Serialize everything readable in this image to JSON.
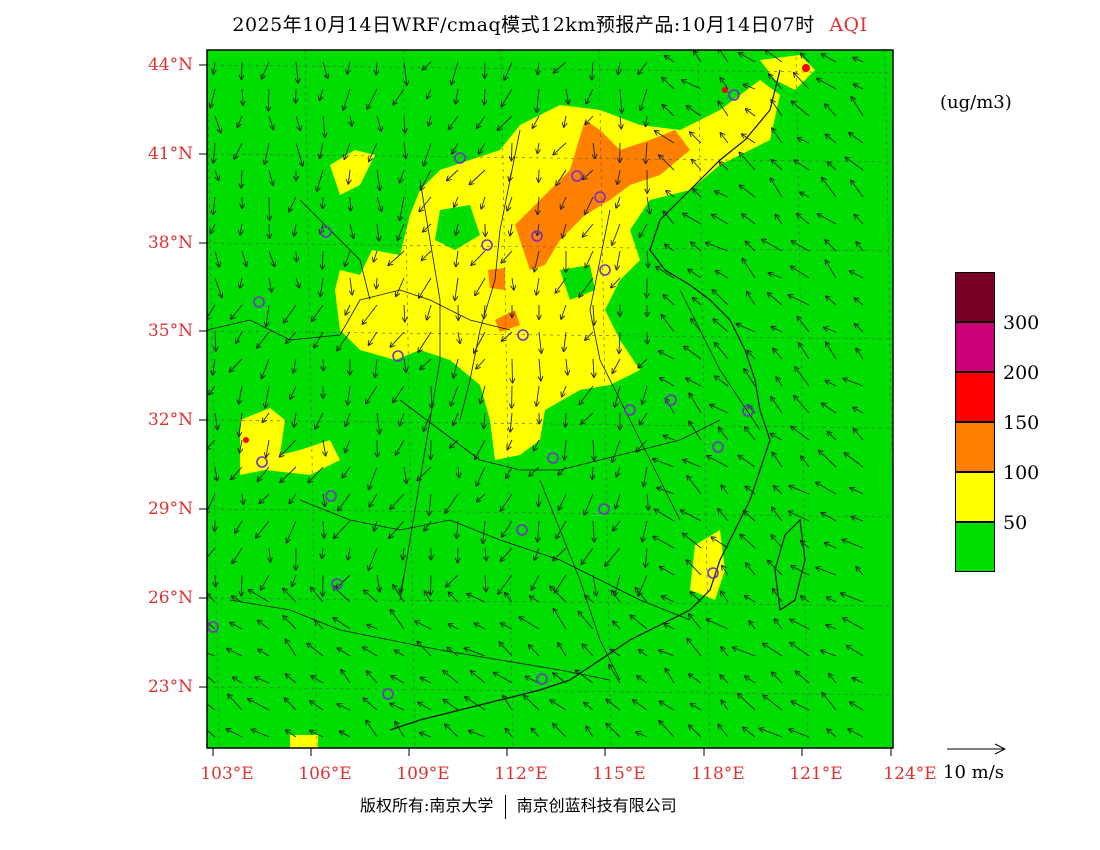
{
  "title": {
    "main": "2025年10月14日WRF/cmaq模式12km预报产品:10月14日07时",
    "variable": "AQI"
  },
  "axes": {
    "lat_labels": [
      "44°N",
      "41°N",
      "38°N",
      "35°N",
      "32°N",
      "29°N",
      "26°N",
      "23°N"
    ],
    "lon_labels": [
      "103°E",
      "106°E",
      "109°E",
      "112°E",
      "115°E",
      "118°E",
      "121°E",
      "124°E"
    ]
  },
  "colorbar": {
    "unit": "(ug/m3)",
    "levels": [
      {
        "color": "#00dd00",
        "label": "50"
      },
      {
        "color": "#ffff00",
        "label": "100"
      },
      {
        "color": "#ff8000",
        "label": "150"
      },
      {
        "color": "#ff0000",
        "label": "200"
      },
      {
        "color": "#cc0077",
        "label": "300"
      },
      {
        "color": "#7a0026",
        "label": ""
      }
    ]
  },
  "wind_reference": {
    "label": "10 m/s"
  },
  "footer": {
    "left": "版权所有:南京大学",
    "right": "南京创蓝科技有限公司"
  },
  "colors": {
    "background_field": "#00dd00",
    "moderate": "#ffff00",
    "sensitive": "#ff8000",
    "unhealthy": "#ff0000",
    "station_marker": "#7a30c8",
    "axis_label": "#e03030"
  }
}
